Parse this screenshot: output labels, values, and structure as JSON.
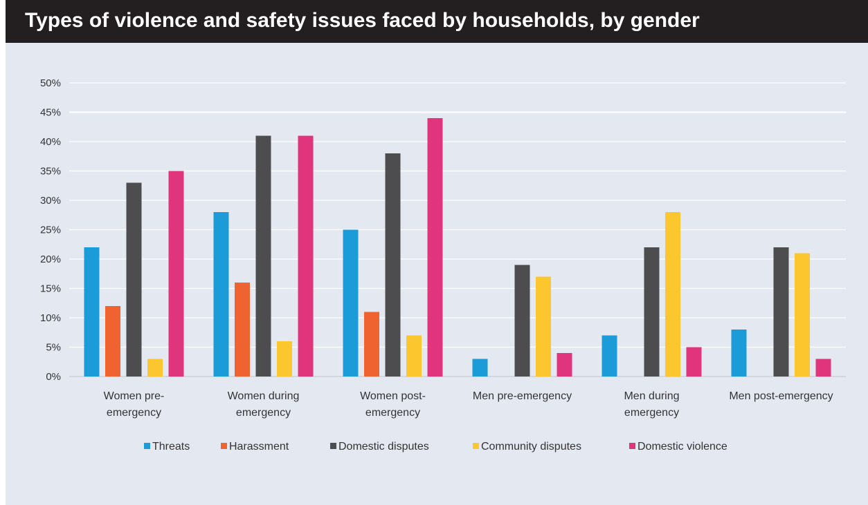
{
  "header": {
    "title": "Types of violence and safety issues faced by households, by gender"
  },
  "chart_data": {
    "type": "bar",
    "title": "Types of violence and safety issues faced by households, by gender",
    "xlabel": "",
    "ylabel": "",
    "ylim": [
      0,
      50
    ],
    "yticks": [
      "0%",
      "5%",
      "10%",
      "15%",
      "20%",
      "25%",
      "30%",
      "35%",
      "40%",
      "45%",
      "50%"
    ],
    "grid": true,
    "legend_position": "bottom",
    "categories": [
      [
        "Women pre-",
        "emergency"
      ],
      [
        "Women during",
        "emergency"
      ],
      [
        "Women post-",
        "emergency"
      ],
      [
        "Men pre-emergency"
      ],
      [
        "Men during",
        "emergency"
      ],
      [
        "Men post-emergency"
      ]
    ],
    "series": [
      {
        "name": "Threats",
        "color": "#1b9bd7",
        "values": [
          22,
          28,
          25,
          3,
          7,
          8
        ]
      },
      {
        "name": "Harassment",
        "color": "#ee6330",
        "values": [
          12,
          16,
          11,
          0,
          0,
          0
        ]
      },
      {
        "name": "Domestic disputes",
        "color": "#4d4d4f",
        "values": [
          33,
          41,
          38,
          19,
          22,
          22
        ]
      },
      {
        "name": "Community disputes",
        "color": "#fcc72e",
        "values": [
          3,
          6,
          7,
          17,
          28,
          21
        ]
      },
      {
        "name": "Domestic violence",
        "color": "#e0357c",
        "values": [
          35,
          41,
          44,
          4,
          5,
          3
        ]
      }
    ]
  }
}
